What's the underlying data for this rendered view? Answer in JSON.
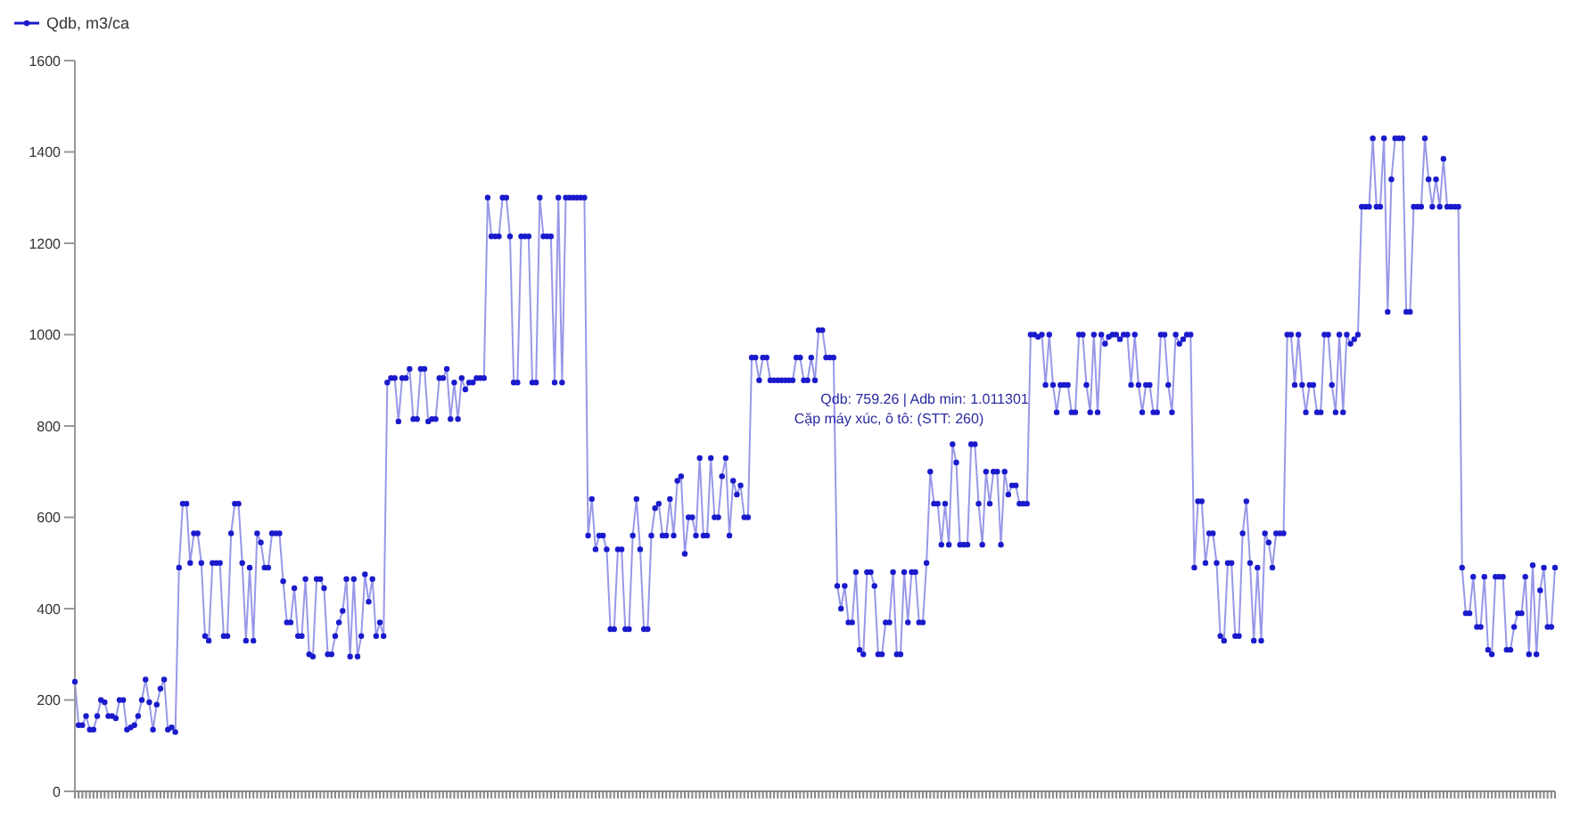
{
  "chart_data": {
    "type": "line",
    "categories": [
      null,
      null,
      null,
      null,
      null,
      null,
      null,
      null,
      null,
      null,
      null,
      null,
      null,
      null,
      null,
      null,
      null,
      null,
      null,
      null,
      null,
      null,
      null,
      null,
      null,
      null,
      null,
      null,
      null,
      null,
      null,
      null,
      null,
      null,
      null,
      null,
      null,
      null,
      null,
      null,
      null,
      null,
      null,
      null,
      null,
      null,
      null,
      null,
      null,
      null,
      null,
      null,
      null,
      null,
      null,
      null,
      null,
      null,
      null,
      null,
      null,
      null,
      null,
      null,
      null,
      null,
      null,
      null,
      null,
      null,
      null,
      null,
      null,
      null,
      null,
      null,
      null,
      null,
      null,
      null,
      null,
      null,
      null,
      null,
      null,
      null,
      null,
      null,
      null,
      null,
      null,
      null,
      null,
      null,
      null,
      null,
      null,
      null,
      null,
      null,
      null,
      null,
      null,
      null,
      null,
      null,
      null,
      null,
      null,
      null,
      null,
      null,
      null,
      null,
      null,
      null,
      null,
      null,
      null,
      null,
      null,
      null,
      null,
      null,
      null,
      null,
      null,
      null,
      null,
      null,
      null,
      null,
      null,
      null,
      null,
      null,
      null,
      null,
      null,
      null,
      null,
      null,
      null,
      null,
      null,
      null,
      null,
      null,
      null,
      null,
      null,
      null,
      null,
      null,
      null,
      null,
      null,
      null,
      null,
      null,
      null,
      null,
      null,
      null,
      null,
      null,
      null,
      null,
      null,
      null,
      null,
      null,
      null,
      null,
      null,
      null,
      null,
      null,
      null,
      null,
      null,
      null,
      null,
      null,
      null,
      null,
      null,
      null,
      null,
      null,
      null,
      null,
      null,
      null,
      null,
      null,
      null,
      null,
      null,
      null,
      null,
      null,
      null,
      null,
      null,
      null,
      null,
      null,
      null,
      null,
      null,
      null,
      null,
      null,
      null,
      null,
      null,
      null,
      null,
      null,
      null,
      null,
      null,
      null,
      null,
      null,
      null,
      null,
      null,
      null,
      null,
      null,
      null,
      null,
      null,
      null,
      null,
      null,
      null,
      null,
      null,
      null,
      null,
      null,
      null,
      null,
      null,
      null,
      null,
      null,
      null,
      null,
      null,
      null,
      null,
      null,
      null,
      null,
      null,
      null,
      null,
      null,
      null,
      null,
      null,
      null,
      null,
      null,
      null,
      null,
      null,
      null,
      null,
      null,
      null,
      null,
      null,
      null,
      null,
      null,
      null,
      null,
      null,
      null,
      null,
      null,
      null,
      null,
      null,
      null,
      null,
      null,
      null,
      null,
      null,
      null,
      null,
      null,
      null,
      null,
      null,
      null,
      null,
      null,
      null,
      null,
      null,
      null,
      null,
      null,
      null,
      null,
      null,
      null,
      null,
      null,
      null,
      null,
      null,
      null,
      null,
      null,
      null,
      null,
      null,
      null,
      null,
      null,
      null,
      null,
      null,
      null,
      null,
      null,
      null,
      null,
      null,
      null,
      null,
      null,
      null,
      null,
      null,
      null,
      null,
      null,
      null,
      null,
      null,
      null,
      null,
      null,
      null,
      null,
      null,
      null,
      null,
      null,
      null,
      null,
      null,
      null,
      null,
      null,
      null,
      null,
      null,
      null,
      null,
      null,
      null,
      null,
      null,
      null,
      null,
      null,
      null,
      null,
      null,
      null,
      null,
      null,
      null,
      null,
      null,
      null,
      null,
      null,
      null,
      null,
      null,
      null,
      null,
      null,
      null,
      null,
      null,
      null,
      null
    ],
    "series": [
      {
        "name": "Qdb, m3/ca",
        "color": "#1a1acc",
        "values": [
          240,
          145,
          145,
          165,
          135,
          135,
          165,
          200,
          195,
          165,
          165,
          160,
          200,
          200,
          135,
          140,
          145,
          165,
          200,
          245,
          195,
          135,
          190,
          225,
          245,
          135,
          140,
          130,
          490,
          630,
          630,
          500,
          565,
          565,
          500,
          340,
          330,
          500,
          500,
          500,
          340,
          340,
          565,
          630,
          630,
          500,
          330,
          490,
          330,
          565,
          545,
          490,
          490,
          565,
          565,
          565,
          460,
          370,
          370,
          445,
          340,
          340,
          465,
          300,
          295,
          465,
          465,
          445,
          300,
          300,
          340,
          370,
          395,
          465,
          295,
          465,
          295,
          340,
          475,
          415,
          465,
          340,
          370,
          340,
          895,
          905,
          905,
          810,
          905,
          905,
          925,
          815,
          815,
          925,
          925,
          810,
          815,
          815,
          905,
          905,
          925,
          815,
          895,
          815,
          905,
          880,
          895,
          895,
          905,
          905,
          905,
          1300,
          1215,
          1215,
          1215,
          1300,
          1300,
          1215,
          895,
          895,
          1215,
          1215,
          1215,
          895,
          895,
          1300,
          1215,
          1215,
          1215,
          895,
          1300,
          895,
          1300,
          1300,
          1300,
          1300,
          1300,
          1300,
          560,
          640,
          530,
          560,
          560,
          530,
          355,
          355,
          530,
          530,
          355,
          355,
          560,
          640,
          530,
          355,
          355,
          560,
          620,
          630,
          560,
          560,
          640,
          560,
          680,
          690,
          520,
          600,
          600,
          560,
          730,
          560,
          560,
          730,
          600,
          600,
          690,
          730,
          560,
          680,
          650,
          670,
          600,
          600,
          950,
          950,
          900,
          950,
          950,
          900,
          900,
          900,
          900,
          900,
          900,
          900,
          950,
          950,
          900,
          900,
          950,
          900,
          1010,
          1010,
          950,
          950,
          950,
          450,
          400,
          450,
          370,
          370,
          480,
          310,
          300,
          480,
          480,
          450,
          300,
          300,
          370,
          370,
          480,
          300,
          300,
          480,
          370,
          480,
          480,
          370,
          370,
          500,
          700,
          630,
          630,
          540,
          630,
          540,
          760,
          720,
          540,
          540,
          540,
          760,
          760,
          630,
          540,
          700,
          630,
          700,
          700,
          540,
          700,
          650,
          670,
          670,
          630,
          630,
          630,
          1000,
          1000,
          995,
          1000,
          890,
          1000,
          890,
          830,
          890,
          890,
          890,
          830,
          830,
          1000,
          1000,
          890,
          830,
          1000,
          830,
          1000,
          980,
          995,
          1000,
          1000,
          990,
          1000,
          1000,
          890,
          1000,
          890,
          830,
          890,
          890,
          830,
          830,
          1000,
          1000,
          890,
          830,
          1000,
          980,
          990,
          1000,
          1000,
          490,
          635,
          635,
          500,
          565,
          565,
          500,
          340,
          330,
          500,
          500,
          340,
          340,
          565,
          635,
          500,
          330,
          490,
          330,
          565,
          545,
          490,
          565,
          565,
          565,
          1000,
          1000,
          890,
          1000,
          890,
          830,
          890,
          890,
          830,
          830,
          1000,
          1000,
          890,
          830,
          1000,
          830,
          1000,
          980,
          990,
          1000,
          1280,
          1280,
          1280,
          1430,
          1280,
          1280,
          1430,
          1050,
          1340,
          1430,
          1430,
          1430,
          1050,
          1050,
          1280,
          1280,
          1280,
          1430,
          1340,
          1280,
          1340,
          1280,
          1385,
          1280,
          1280,
          1280,
          1280,
          490,
          390,
          390,
          470,
          360,
          360,
          470,
          310,
          300,
          470,
          470,
          470,
          310,
          310,
          360,
          390,
          390,
          470,
          300,
          495,
          300,
          440,
          490,
          360,
          360,
          490
        ]
      }
    ],
    "ylim": [
      0,
      1600
    ],
    "yticks": [
      0,
      200,
      400,
      600,
      800,
      1000,
      1200,
      1400,
      1600
    ],
    "grid": false,
    "legend": "top left",
    "marker": "circle",
    "line_style": "solid",
    "annotations": [
      "Qdb: 759.26 | Adb min: 1.011301",
      "Cặp máy xúc, ô tô: (STT: 260)"
    ]
  }
}
